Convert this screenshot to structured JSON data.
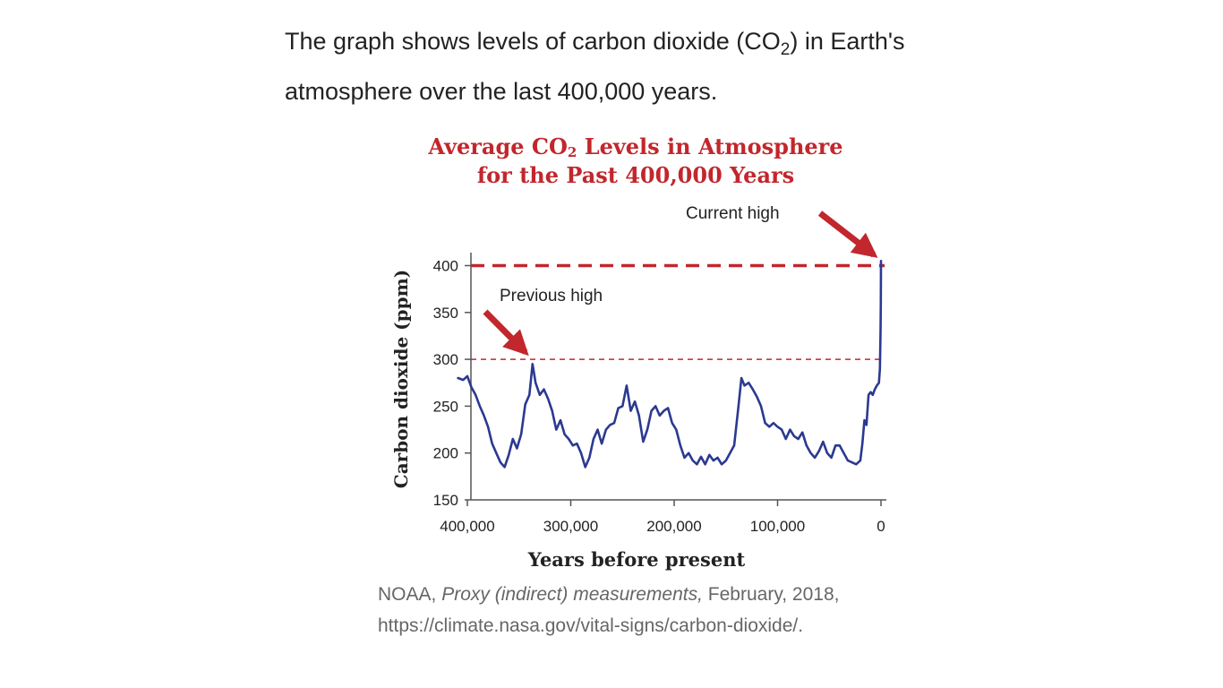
{
  "intro": {
    "text_before": "The graph shows levels of carbon dioxide (CO",
    "subscript": "2",
    "text_after": ") in Earth's atmosphere over the last 400,000 years."
  },
  "figure_title": {
    "line1_before": "Average CO",
    "line1_sub": "2",
    "line1_after": " Levels in Atmosphere",
    "line2": "for the Past 400,000 Years"
  },
  "source": {
    "prefix": "NOAA, ",
    "italic": "Proxy (indirect) measurements,",
    "date": " February, 2018,",
    "url": "https://climate.nasa.gov/vital-signs/carbon-dioxide/."
  },
  "colors": {
    "series": "#2b3990",
    "highlight": "#c1272d",
    "axis": "#555555",
    "text": "#222222",
    "source_text": "#666666"
  },
  "chart_data": {
    "type": "line",
    "title": "Average CO2 Levels in Atmosphere for the Past 400,000 Years",
    "xlabel": "Years before present",
    "ylabel": "Carbon dioxide (ppm)",
    "xlim": [
      410000,
      0
    ],
    "ylim": [
      150,
      410
    ],
    "x_reversed": true,
    "xticks": [
      400000,
      300000,
      200000,
      100000,
      0
    ],
    "xtick_labels": [
      "400,000",
      "300,000",
      "200,000",
      "100,000",
      "0"
    ],
    "yticks": [
      400,
      350,
      300,
      250,
      200,
      150
    ],
    "ytick_labels": [
      "400",
      "350",
      "300",
      "250",
      "200",
      "150"
    ],
    "grid": false,
    "series": [
      {
        "name": "CO2",
        "points": [
          [
            409000,
            280
          ],
          [
            404000,
            278
          ],
          [
            400000,
            282
          ],
          [
            396000,
            270
          ],
          [
            392000,
            262
          ],
          [
            388000,
            250
          ],
          [
            384000,
            240
          ],
          [
            380000,
            228
          ],
          [
            376000,
            210
          ],
          [
            372000,
            200
          ],
          [
            368000,
            190
          ],
          [
            364000,
            185
          ],
          [
            360000,
            198
          ],
          [
            356000,
            215
          ],
          [
            352000,
            205
          ],
          [
            348000,
            220
          ],
          [
            344000,
            252
          ],
          [
            340000,
            262
          ],
          [
            337000,
            295
          ],
          [
            334000,
            275
          ],
          [
            330000,
            262
          ],
          [
            326000,
            268
          ],
          [
            322000,
            258
          ],
          [
            318000,
            245
          ],
          [
            314000,
            225
          ],
          [
            310000,
            235
          ],
          [
            306000,
            220
          ],
          [
            302000,
            215
          ],
          [
            298000,
            208
          ],
          [
            294000,
            210
          ],
          [
            290000,
            200
          ],
          [
            286000,
            185
          ],
          [
            282000,
            195
          ],
          [
            278000,
            215
          ],
          [
            274000,
            225
          ],
          [
            270000,
            210
          ],
          [
            266000,
            225
          ],
          [
            262000,
            230
          ],
          [
            258000,
            232
          ],
          [
            254000,
            248
          ],
          [
            250000,
            250
          ],
          [
            246000,
            272
          ],
          [
            242000,
            245
          ],
          [
            238000,
            255
          ],
          [
            234000,
            240
          ],
          [
            230000,
            212
          ],
          [
            226000,
            225
          ],
          [
            222000,
            245
          ],
          [
            218000,
            250
          ],
          [
            214000,
            240
          ],
          [
            210000,
            245
          ],
          [
            206000,
            248
          ],
          [
            202000,
            232
          ],
          [
            198000,
            225
          ],
          [
            194000,
            208
          ],
          [
            190000,
            195
          ],
          [
            186000,
            200
          ],
          [
            182000,
            192
          ],
          [
            178000,
            188
          ],
          [
            174000,
            196
          ],
          [
            170000,
            188
          ],
          [
            166000,
            198
          ],
          [
            162000,
            192
          ],
          [
            158000,
            195
          ],
          [
            154000,
            188
          ],
          [
            150000,
            192
          ],
          [
            146000,
            200
          ],
          [
            142000,
            208
          ],
          [
            138000,
            248
          ],
          [
            135000,
            280
          ],
          [
            132000,
            272
          ],
          [
            128000,
            275
          ],
          [
            124000,
            268
          ],
          [
            120000,
            260
          ],
          [
            116000,
            250
          ],
          [
            112000,
            232
          ],
          [
            108000,
            228
          ],
          [
            104000,
            232
          ],
          [
            100000,
            228
          ],
          [
            96000,
            225
          ],
          [
            92000,
            215
          ],
          [
            88000,
            225
          ],
          [
            84000,
            218
          ],
          [
            80000,
            215
          ],
          [
            76000,
            222
          ],
          [
            72000,
            208
          ],
          [
            68000,
            200
          ],
          [
            64000,
            195
          ],
          [
            60000,
            202
          ],
          [
            56000,
            212
          ],
          [
            52000,
            200
          ],
          [
            48000,
            195
          ],
          [
            44000,
            208
          ],
          [
            40000,
            208
          ],
          [
            36000,
            200
          ],
          [
            32000,
            192
          ],
          [
            28000,
            190
          ],
          [
            24000,
            188
          ],
          [
            20000,
            192
          ],
          [
            18000,
            210
          ],
          [
            16000,
            235
          ],
          [
            14000,
            230
          ],
          [
            12000,
            262
          ],
          [
            10000,
            265
          ],
          [
            8000,
            262
          ],
          [
            6000,
            268
          ],
          [
            4000,
            272
          ],
          [
            2000,
            275
          ],
          [
            1000,
            290
          ],
          [
            400,
            330
          ],
          [
            200,
            360
          ],
          [
            0,
            405
          ]
        ]
      }
    ],
    "reference_lines": [
      {
        "value": 400,
        "style": "dashed-heavy",
        "label": "Current high"
      },
      {
        "value": 300,
        "style": "dashed-light",
        "label": "Previous high"
      }
    ],
    "annotations": [
      {
        "text": "Current high",
        "points_to": [
          0,
          400
        ]
      },
      {
        "text": "Previous high",
        "points_to": [
          337000,
          300
        ]
      }
    ]
  }
}
